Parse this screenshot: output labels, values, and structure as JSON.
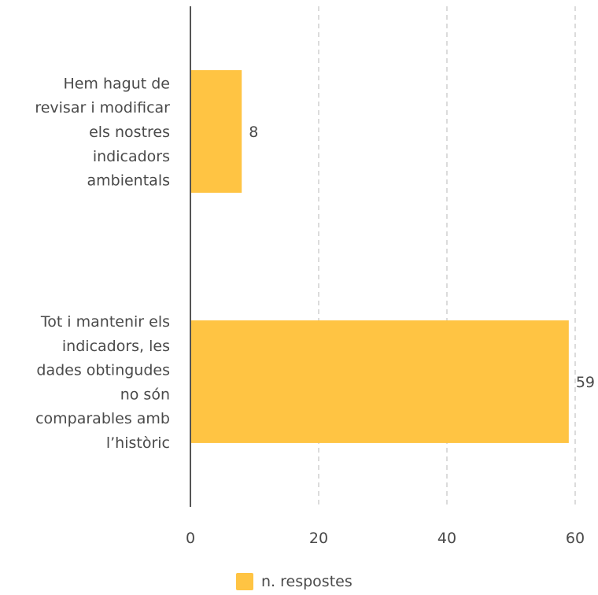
{
  "chart_data": {
    "type": "bar",
    "orientation": "horizontal",
    "categories": [
      [
        "Hem hagut de",
        "revisar i modificar",
        "els nostres",
        "indicadors",
        "ambientals"
      ],
      [
        "Tot i mantenir els",
        "indicadors, les",
        "dades obtingudes",
        "no són",
        "comparables amb",
        "l’històric"
      ]
    ],
    "series": [
      {
        "name": "n. respostes",
        "values": [
          8,
          59
        ],
        "color": "#ffc443"
      }
    ],
    "xlim": [
      0,
      60
    ],
    "xticks": [
      0,
      20,
      40,
      60
    ],
    "grid": true,
    "legend_position": "bottom"
  },
  "legend": {
    "label": "n. respostes",
    "color": "#ffc443"
  }
}
